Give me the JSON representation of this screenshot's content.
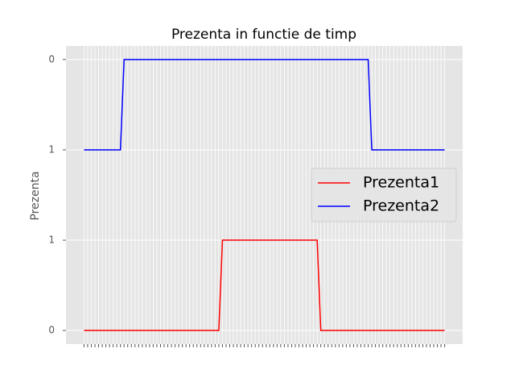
{
  "chart_data": {
    "type": "line",
    "title": "Prezenta  in functie de timp",
    "ylabel": "Prezenta",
    "categories": [
      null,
      null,
      null,
      null,
      null,
      null,
      null,
      null,
      null,
      null,
      null,
      null,
      null,
      null,
      null,
      null,
      null,
      null,
      null,
      null,
      null,
      null,
      null,
      null,
      null,
      null,
      null,
      null,
      null,
      null,
      null,
      null,
      null,
      null,
      null,
      null,
      null,
      null,
      null,
      null,
      null,
      null,
      null,
      null,
      null,
      null,
      null,
      null,
      null,
      null,
      null,
      null,
      null,
      null,
      null,
      null,
      null,
      null,
      null,
      null,
      null,
      null,
      null,
      null,
      null,
      null,
      null,
      null,
      null,
      null,
      null,
      null,
      null,
      null,
      null,
      null,
      null,
      null,
      null,
      null,
      null,
      null,
      null,
      null,
      null,
      null,
      null,
      null,
      null,
      null,
      null,
      null,
      null,
      null,
      null,
      null,
      null,
      null,
      null,
      null
    ],
    "series": [
      {
        "name": "Prezenta1",
        "color": "#ff0000",
        "values": [
          0,
          0,
          0,
          0,
          0,
          0,
          0,
          0,
          0,
          0,
          0,
          0,
          0,
          0,
          0,
          0,
          0,
          0,
          0,
          0,
          0,
          0,
          0,
          0,
          0,
          0,
          0,
          0,
          0,
          0,
          0,
          0,
          0,
          0,
          0,
          0,
          0,
          0,
          1,
          1,
          1,
          1,
          1,
          1,
          1,
          1,
          1,
          1,
          1,
          1,
          1,
          1,
          1,
          1,
          1,
          1,
          1,
          1,
          1,
          1,
          1,
          1,
          1,
          1,
          1,
          0,
          0,
          0,
          0,
          0,
          0,
          0,
          0,
          0,
          0,
          0,
          0,
          0,
          0,
          0,
          0,
          0,
          0,
          0,
          0,
          0,
          0,
          0,
          0,
          0,
          0,
          0,
          0,
          0,
          0,
          0,
          0,
          0,
          0,
          0
        ]
      },
      {
        "name": "Prezenta2",
        "color": "#0000ff",
        "values": [
          2,
          2,
          2,
          2,
          2,
          2,
          2,
          2,
          2,
          2,
          2,
          3,
          3,
          3,
          3,
          3,
          3,
          3,
          3,
          3,
          3,
          3,
          3,
          3,
          3,
          3,
          3,
          3,
          3,
          3,
          3,
          3,
          3,
          3,
          3,
          3,
          3,
          3,
          3,
          3,
          3,
          3,
          3,
          3,
          3,
          3,
          3,
          3,
          3,
          3,
          3,
          3,
          3,
          3,
          3,
          3,
          3,
          3,
          3,
          3,
          3,
          3,
          3,
          3,
          3,
          3,
          3,
          3,
          3,
          3,
          3,
          3,
          3,
          3,
          3,
          3,
          3,
          3,
          3,
          2,
          2,
          2,
          2,
          2,
          2,
          2,
          2,
          2,
          2,
          2,
          2,
          2,
          2,
          2,
          2,
          2,
          2,
          2,
          2,
          2
        ]
      }
    ],
    "ylim": [
      -0.15,
      3.15
    ],
    "yticks": [
      0,
      1,
      {
        "value": 2,
        "label": "1"
      },
      {
        "value": 3,
        "label": "0"
      }
    ],
    "grid": true,
    "legend": "center right"
  }
}
